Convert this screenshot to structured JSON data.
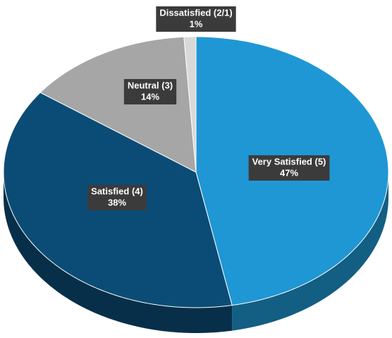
{
  "chart_data": {
    "type": "pie",
    "categories": [
      "Very Satisfied (5)",
      "Satisfied (4)",
      "Neutral (3)",
      "Dissatisfied (2/1)"
    ],
    "values": [
      47,
      38,
      14,
      1
    ],
    "value_labels": [
      "47%",
      "38%",
      "14%",
      "1%"
    ],
    "colors": [
      "#1f97d4",
      "#0b4c76",
      "#a6a6a6",
      "#d9d9d9"
    ]
  }
}
